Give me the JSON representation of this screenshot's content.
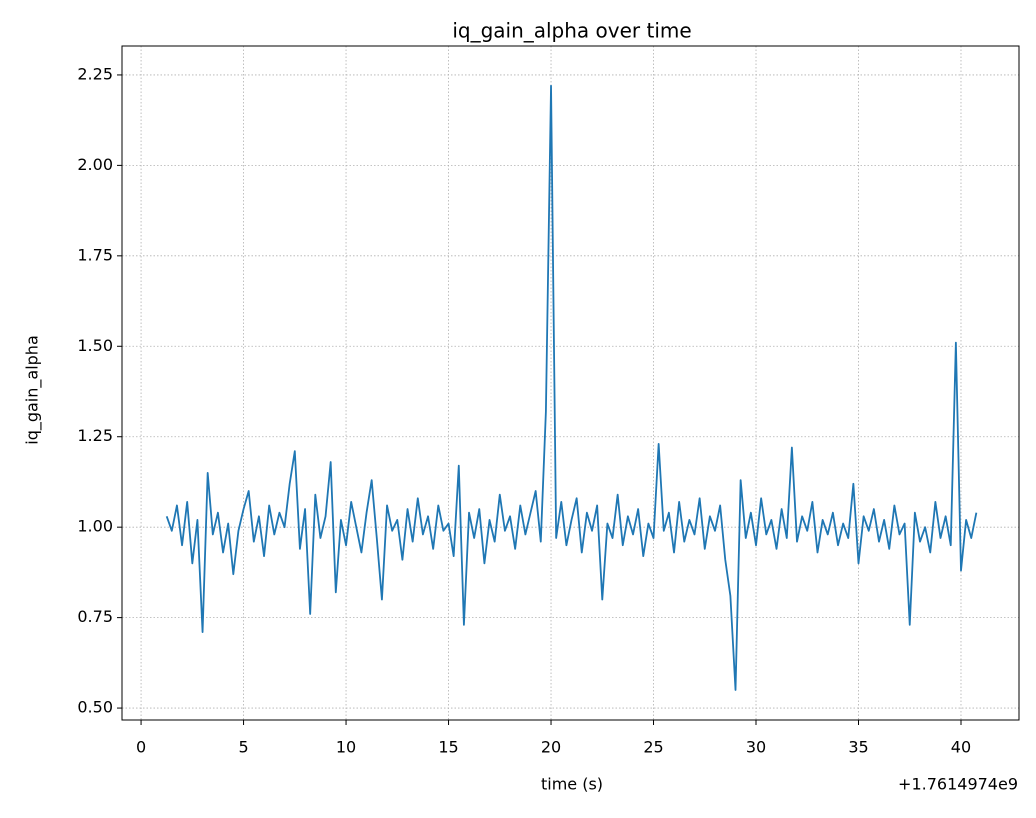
{
  "chart_data": {
    "type": "line",
    "title": "iq_gain_alpha over time",
    "xlabel": "time (s)",
    "ylabel": "iq_gain_alpha",
    "x_offset_label": "+1.7614974e9",
    "x": [
      1.25,
      1.5,
      1.75,
      2,
      2.25,
      2.5,
      2.75,
      3,
      3.25,
      3.5,
      3.75,
      4,
      4.25,
      4.5,
      4.75,
      5,
      5.25,
      5.5,
      5.75,
      6,
      6.25,
      6.5,
      6.75,
      7,
      7.25,
      7.5,
      7.75,
      8,
      8.25,
      8.5,
      8.75,
      9,
      9.25,
      9.5,
      9.75,
      10,
      10.25,
      10.5,
      10.75,
      11,
      11.25,
      11.5,
      11.75,
      12,
      12.25,
      12.5,
      12.75,
      13,
      13.25,
      13.5,
      13.75,
      14,
      14.25,
      14.5,
      14.75,
      15,
      15.25,
      15.5,
      15.75,
      16,
      16.25,
      16.5,
      16.75,
      17,
      17.25,
      17.5,
      17.75,
      18,
      18.25,
      18.5,
      18.75,
      19,
      19.25,
      19.5,
      19.75,
      20,
      20.25,
      20.5,
      20.75,
      21,
      21.25,
      21.5,
      21.75,
      22,
      22.25,
      22.5,
      22.75,
      23,
      23.25,
      23.5,
      23.75,
      24,
      24.25,
      24.5,
      24.75,
      25,
      25.25,
      25.5,
      25.75,
      26,
      26.25,
      26.5,
      26.75,
      27,
      27.25,
      27.5,
      27.75,
      28,
      28.25,
      28.5,
      28.75,
      29,
      29.25,
      29.5,
      29.75,
      30,
      30.25,
      30.5,
      30.75,
      31,
      31.25,
      31.5,
      31.75,
      32,
      32.25,
      32.5,
      32.75,
      33,
      33.25,
      33.5,
      33.75,
      34,
      34.25,
      34.5,
      34.75,
      35,
      35.25,
      35.5,
      35.75,
      36,
      36.25,
      36.5,
      36.75,
      37,
      37.25,
      37.5,
      37.75,
      38,
      38.25,
      38.5,
      38.75,
      39,
      39.25,
      39.5,
      39.75,
      40,
      40.25,
      40.5,
      40.75
    ],
    "series": [
      {
        "name": "iq_gain_alpha",
        "color": "#1f77b4",
        "values": [
          1.03,
          0.99,
          1.06,
          0.95,
          1.07,
          0.9,
          1.02,
          0.71,
          1.15,
          0.98,
          1.04,
          0.93,
          1.01,
          0.87,
          0.99,
          1.05,
          1.1,
          0.96,
          1.03,
          0.92,
          1.06,
          0.98,
          1.04,
          1.0,
          1.12,
          1.21,
          0.94,
          1.05,
          0.76,
          1.09,
          0.97,
          1.03,
          1.18,
          0.82,
          1.02,
          0.95,
          1.07,
          1.0,
          0.93,
          1.04,
          1.13,
          0.97,
          0.8,
          1.06,
          0.99,
          1.02,
          0.91,
          1.05,
          0.96,
          1.08,
          0.98,
          1.03,
          0.94,
          1.06,
          0.99,
          1.01,
          0.92,
          1.17,
          0.73,
          1.04,
          0.97,
          1.05,
          0.9,
          1.02,
          0.96,
          1.09,
          0.99,
          1.03,
          0.94,
          1.06,
          0.98,
          1.04,
          1.1,
          0.96,
          1.32,
          2.22,
          0.97,
          1.07,
          0.95,
          1.02,
          1.08,
          0.93,
          1.04,
          0.99,
          1.06,
          0.8,
          1.01,
          0.97,
          1.09,
          0.95,
          1.03,
          0.98,
          1.05,
          0.92,
          1.01,
          0.97,
          1.23,
          0.99,
          1.04,
          0.93,
          1.07,
          0.96,
          1.02,
          0.98,
          1.08,
          0.94,
          1.03,
          0.99,
          1.06,
          0.91,
          0.81,
          0.55,
          1.13,
          0.97,
          1.04,
          0.95,
          1.08,
          0.98,
          1.02,
          0.94,
          1.05,
          0.97,
          1.22,
          0.96,
          1.03,
          0.99,
          1.07,
          0.93,
          1.02,
          0.98,
          1.04,
          0.95,
          1.01,
          0.97,
          1.12,
          0.9,
          1.03,
          0.99,
          1.05,
          0.96,
          1.02,
          0.94,
          1.06,
          0.98,
          1.01,
          0.73,
          1.04,
          0.96,
          1.0,
          0.93,
          1.07,
          0.97,
          1.03,
          0.95,
          1.51,
          0.88,
          1.02,
          0.97,
          1.04
        ]
      }
    ],
    "xlim": [
      -0.93,
      42.83
    ],
    "ylim": [
      0.467,
      2.33
    ],
    "xticks": [
      0,
      5,
      10,
      15,
      20,
      25,
      30,
      35,
      40
    ],
    "yticks": [
      {
        "value": 0.5,
        "label": "0.50"
      },
      {
        "value": 0.75,
        "label": "0.75"
      },
      {
        "value": 1.0,
        "label": "1.00"
      },
      {
        "value": 1.25,
        "label": "1.25"
      },
      {
        "value": 1.5,
        "label": "1.50"
      },
      {
        "value": 1.75,
        "label": "1.75"
      },
      {
        "value": 2.0,
        "label": "2.00"
      },
      {
        "value": 2.25,
        "label": "2.25"
      }
    ],
    "grid": true
  }
}
